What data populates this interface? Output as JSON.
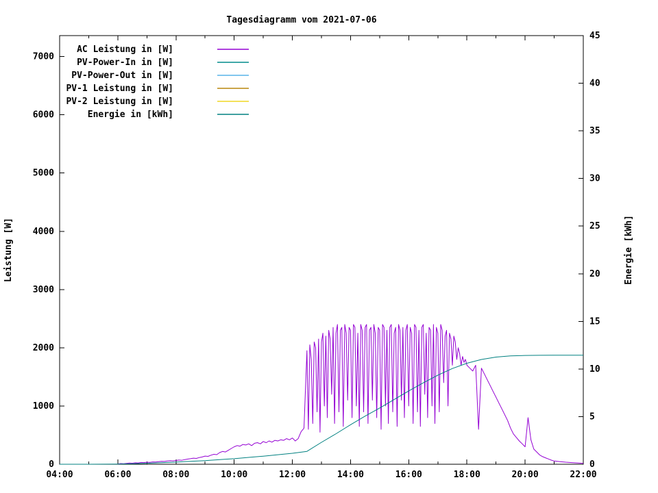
{
  "chart_data": {
    "type": "line",
    "title": "Tagesdiagramm vom 2021-07-06",
    "legend_position": "top-left-inside",
    "grid": false,
    "x_axis": {
      "min": 4,
      "max": 22,
      "ticks": [
        {
          "t": 4,
          "label": "04:00"
        },
        {
          "t": 6,
          "label": "06:00"
        },
        {
          "t": 8,
          "label": "08:00"
        },
        {
          "t": 10,
          "label": "10:00"
        },
        {
          "t": 12,
          "label": "12:00"
        },
        {
          "t": 14,
          "label": "14:00"
        },
        {
          "t": 16,
          "label": "16:00"
        },
        {
          "t": 18,
          "label": "18:00"
        },
        {
          "t": 20,
          "label": "20:00"
        },
        {
          "t": 22,
          "label": "22:00"
        }
      ],
      "minor_ticks": [
        5,
        7,
        9,
        11,
        13,
        15,
        17,
        19,
        21
      ]
    },
    "y_left": {
      "label": "Leistung [W]",
      "min": 0,
      "max": 7360,
      "ticks": [
        0,
        1000,
        2000,
        3000,
        4000,
        5000,
        6000,
        7000
      ]
    },
    "y_right": {
      "label": "Energie [kWh]",
      "min": 0,
      "max": 45,
      "ticks": [
        0,
        5,
        10,
        15,
        20,
        25,
        30,
        35,
        40,
        45
      ]
    },
    "series": [
      {
        "name": "AC Leistung in [W]",
        "color": "#9400d3",
        "axis": "left",
        "segments": [
          {
            "start": 6.0,
            "step": 0.1,
            "values": [
              5,
              12,
              8,
              15,
              20,
              18,
              25,
              22,
              30,
              28,
              35,
              32,
              40,
              38,
              45,
              50,
              48,
              55,
              60,
              58,
              65,
              72,
              68,
              80,
              88,
              95,
              105,
              100,
              115,
              125,
              140,
              135,
              155,
              170,
              165,
              200,
              220,
              210,
              240,
              270,
              300,
              320,
              310,
              340,
              330,
              350,
              320,
              360,
              370,
              350,
              390,
              370,
              400,
              380,
              410,
              400,
              420,
              410,
              440,
              420,
              450,
              400,
              440,
              560,
              620
            ]
          },
          {
            "start": 12.5,
            "step": 0.05,
            "values": [
              1950,
              600,
              2050,
              1800,
              700,
              2100,
              2000,
              900,
              2150,
              550,
              2100,
              2250,
              1000,
              2200,
              800,
              2300,
              2150,
              1200,
              2350,
              700,
              2250,
              2400,
              900,
              2300,
              2350,
              650,
              2400,
              2250,
              1100,
              2350,
              2300,
              800,
              2400,
              2350,
              1000,
              2250,
              650,
              2400,
              2300,
              900,
              2350,
              2400,
              700,
              2300,
              2350,
              1100,
              2400,
              2250,
              800,
              2350,
              2300,
              600,
              2400,
              2350,
              1000,
              2300,
              700,
              2350,
              2400,
              900,
              2250,
              2350,
              650,
              2400,
              2300,
              1100,
              2350,
              800,
              2300,
              2400,
              1000,
              2350,
              2250,
              700,
              2400,
              2350,
              900,
              2300,
              650,
              2350,
              2400,
              1200,
              2250,
              800,
              2350,
              2300,
              1000,
              2400,
              700,
              2350,
              2250,
              900,
              2400,
              2300,
              1400,
              2200,
              2300,
              1000,
              2250,
              2150,
              1700,
              2200,
              2100
            ]
          },
          {
            "start": 17.65,
            "step": 0.05,
            "values": [
              1800,
              2000,
              1900,
              1700,
              1850,
              1750,
              1800
            ]
          },
          {
            "start": 18.0,
            "step": 0.1,
            "values": [
              1700,
              1650,
              1600,
              1700,
              600,
              1650,
              1550,
              1450,
              1350,
              1250,
              1150,
              1050,
              950,
              850,
              750,
              620,
              520,
              460,
              400,
              350,
              300,
              800,
              420,
              260,
              210,
              160,
              130,
              110,
              90,
              70,
              55
            ]
          },
          {
            "start": 21.2,
            "step": 0.2,
            "values": [
              45,
              35,
              28,
              22,
              15
            ]
          }
        ]
      },
      {
        "name": "PV-Power-In in [W]",
        "color": "#008b8b",
        "axis": "left",
        "segments": []
      },
      {
        "name": "PV-Power-Out in [W]",
        "color": "#56b4e9",
        "axis": "left",
        "segments": []
      },
      {
        "name": "PV-1 Leistung in [W]",
        "color": "#b8860b",
        "axis": "left",
        "segments": []
      },
      {
        "name": "PV-2 Leistung in [W]",
        "color": "#f0d722",
        "axis": "left",
        "segments": []
      },
      {
        "name": "Energie in [kWh]",
        "color": "#008080",
        "axis": "right",
        "segments": [
          {
            "start": 4.0,
            "step": 0.5,
            "values": [
              0,
              0,
              0,
              0.01,
              0.02,
              0.05,
              0.1,
              0.16,
              0.22,
              0.3,
              0.38,
              0.48,
              0.58,
              0.72,
              0.85,
              1.0,
              1.15,
              1.35,
              2.3,
              3.2,
              4.15,
              5.05,
              5.9,
              6.8,
              7.7,
              8.55,
              9.35,
              10.05,
              10.6,
              11.0,
              11.25,
              11.37,
              11.42,
              11.44,
              11.45,
              11.45,
              11.45
            ]
          }
        ]
      }
    ]
  }
}
